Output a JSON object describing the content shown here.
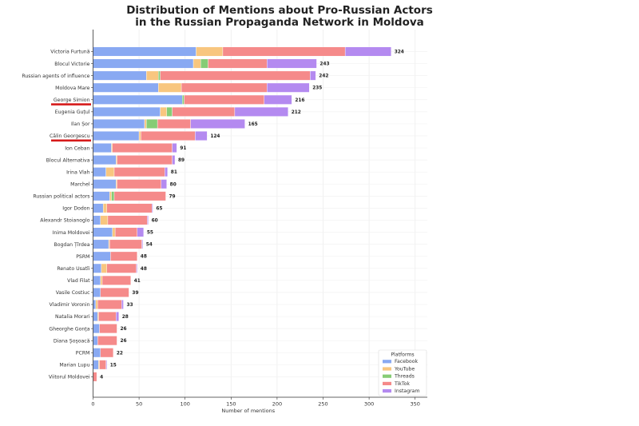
{
  "chart_data": {
    "type": "bar",
    "orientation": "horizontal",
    "stacked": true,
    "title_lines": [
      "Distribution of Mentions about Pro-Russian Actors",
      "in the Russian Propaganda Network in Moldova"
    ],
    "xlabel": "Number of mentions",
    "ylabel": "",
    "xlim": [
      0,
      355
    ],
    "xticks": [
      0,
      50,
      100,
      150,
      200,
      250,
      300,
      350
    ],
    "grid": true,
    "legend": {
      "title": "Platforms",
      "placement": "bottom-right"
    },
    "highlighted_categories": [
      "George Simion",
      "Călin Georgescu"
    ],
    "highlight_color": "#D61A1A",
    "categories": [
      "Victoria Furtună",
      "Blocul Victorie",
      "Russian agents of influence",
      "Moldova Mare",
      "George Simion",
      "Eugenia Guțul",
      "Ilan Șor",
      "Călin Georgescu",
      "Ion Ceban",
      "Blocul Alternativa",
      "Irina Vlah",
      "Marchel",
      "Russian political actors",
      "Igor Dodon",
      "Alexandr Stoianoglo",
      "Inima Moldovei",
      "Bogdan Țîrdea",
      "PSRM",
      "Renato Usatîi",
      "Vlad Filat",
      "Vasile Costiuc",
      "Vladimir Voronin",
      "Natalia Morari",
      "Gheorghe Gonța",
      "Diana Șoșoacă",
      "PCRM",
      "Marian Lupu",
      "Viitorul Moldovei"
    ],
    "totals": [
      324,
      243,
      242,
      235,
      216,
      212,
      165,
      124,
      91,
      89,
      81,
      80,
      79,
      65,
      60,
      55,
      54,
      48,
      48,
      41,
      39,
      33,
      28,
      26,
      26,
      22,
      15,
      4
    ],
    "series": [
      {
        "name": "Facebook",
        "color": "#89A9F2",
        "values": [
          112,
          109,
          58,
          71,
          97,
          73,
          56,
          50,
          20,
          25,
          14,
          25,
          18,
          11,
          8,
          21,
          17,
          19,
          9,
          8,
          8,
          3,
          5,
          7,
          5,
          8,
          6,
          0
        ]
      },
      {
        "name": "YouTube",
        "color": "#F8C67F",
        "values": [
          29,
          8,
          13,
          25,
          0,
          7,
          2,
          2,
          1,
          1,
          9,
          1,
          2,
          4,
          8,
          3,
          1,
          0,
          6,
          2,
          0,
          2,
          1,
          0,
          0,
          0,
          1,
          0
        ]
      },
      {
        "name": "Threads",
        "color": "#86CC75",
        "values": [
          0,
          8,
          2,
          0,
          2,
          6,
          12,
          0,
          0,
          0,
          0,
          0,
          3,
          0,
          0,
          0,
          0,
          0,
          0,
          0,
          0,
          0,
          0,
          0,
          0,
          0,
          0,
          0
        ]
      },
      {
        "name": "TikTok",
        "color": "#F58A8A",
        "values": [
          133,
          64,
          163,
          93,
          87,
          68,
          36,
          59,
          65,
          60,
          55,
          48,
          56,
          49,
          43,
          24,
          35,
          29,
          32,
          31,
          31,
          26,
          19,
          19,
          21,
          14,
          7,
          4
        ]
      },
      {
        "name": "Instagram",
        "color": "#B48AF0",
        "values": [
          50,
          54,
          6,
          46,
          30,
          58,
          59,
          13,
          5,
          3,
          3,
          6,
          0,
          1,
          1,
          7,
          1,
          0,
          1,
          0,
          0,
          2,
          3,
          0,
          0,
          0,
          1,
          0
        ]
      }
    ]
  }
}
